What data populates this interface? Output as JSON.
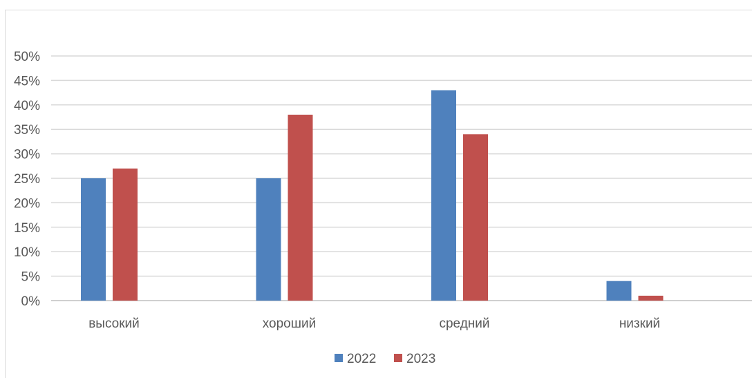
{
  "chart_data": {
    "type": "bar",
    "categories": [
      "высокий",
      "хороший",
      "средний",
      "низкий"
    ],
    "series": [
      {
        "name": "2022",
        "color": "#4f81bd",
        "values": [
          0.25,
          0.25,
          0.43,
          0.04
        ]
      },
      {
        "name": "2023",
        "color": "#c0504d",
        "values": [
          0.27,
          0.38,
          0.34,
          0.01
        ]
      }
    ],
    "yticks": [
      "0%",
      "5%",
      "10%",
      "15%",
      "20%",
      "25%",
      "30%",
      "35%",
      "40%",
      "45%",
      "50%"
    ],
    "ylim": [
      0,
      0.5
    ],
    "grid": true,
    "legend": "bottom-center"
  }
}
